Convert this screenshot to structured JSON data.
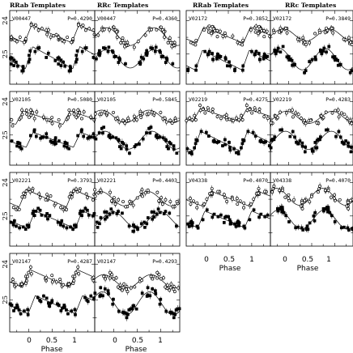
{
  "chart_data": {
    "type": "scatter",
    "column_titles": [
      "RRab Templates",
      "RRc Templates",
      "RRab Templates",
      "RRc Templates"
    ],
    "xlabel": "Phase",
    "x_ticks": [
      "0",
      "0.5",
      "1"
    ],
    "xlim": [
      -0.4,
      1.4
    ],
    "y_ticks": [
      "24",
      "25"
    ],
    "ylim": [
      25.9,
      23.7
    ],
    "panels": [
      {
        "star": "V00447",
        "rrab_period": "P=0.4290",
        "rrc_period": "P=0.4360"
      },
      {
        "star": "V02105",
        "rrab_period": "P=0.5080",
        "rrc_period": "P=0.5845"
      },
      {
        "star": "V02221",
        "rrab_period": "P=0.3793",
        "rrc_period": "P=0.4403"
      },
      {
        "star": "V02147",
        "rrab_period": "P=0.4287",
        "rrc_period": "P=0.4293"
      },
      {
        "star": "V02172",
        "rrab_period": "P=0.3852",
        "rrc_period": "P=0.3849"
      },
      {
        "star": "V02219",
        "rrab_period": "P=0.4275",
        "rrc_period": "P=0.4283"
      },
      {
        "star": "V04338",
        "rrab_period": "P=0.4070",
        "rrc_period": "P=0.4070"
      }
    ],
    "series": [
      {
        "marker": "open",
        "mean_mag": 24.45,
        "amplitude": 0.45
      },
      {
        "marker": "filled",
        "mean_mag": 25.15,
        "amplitude": 0.55
      }
    ]
  }
}
